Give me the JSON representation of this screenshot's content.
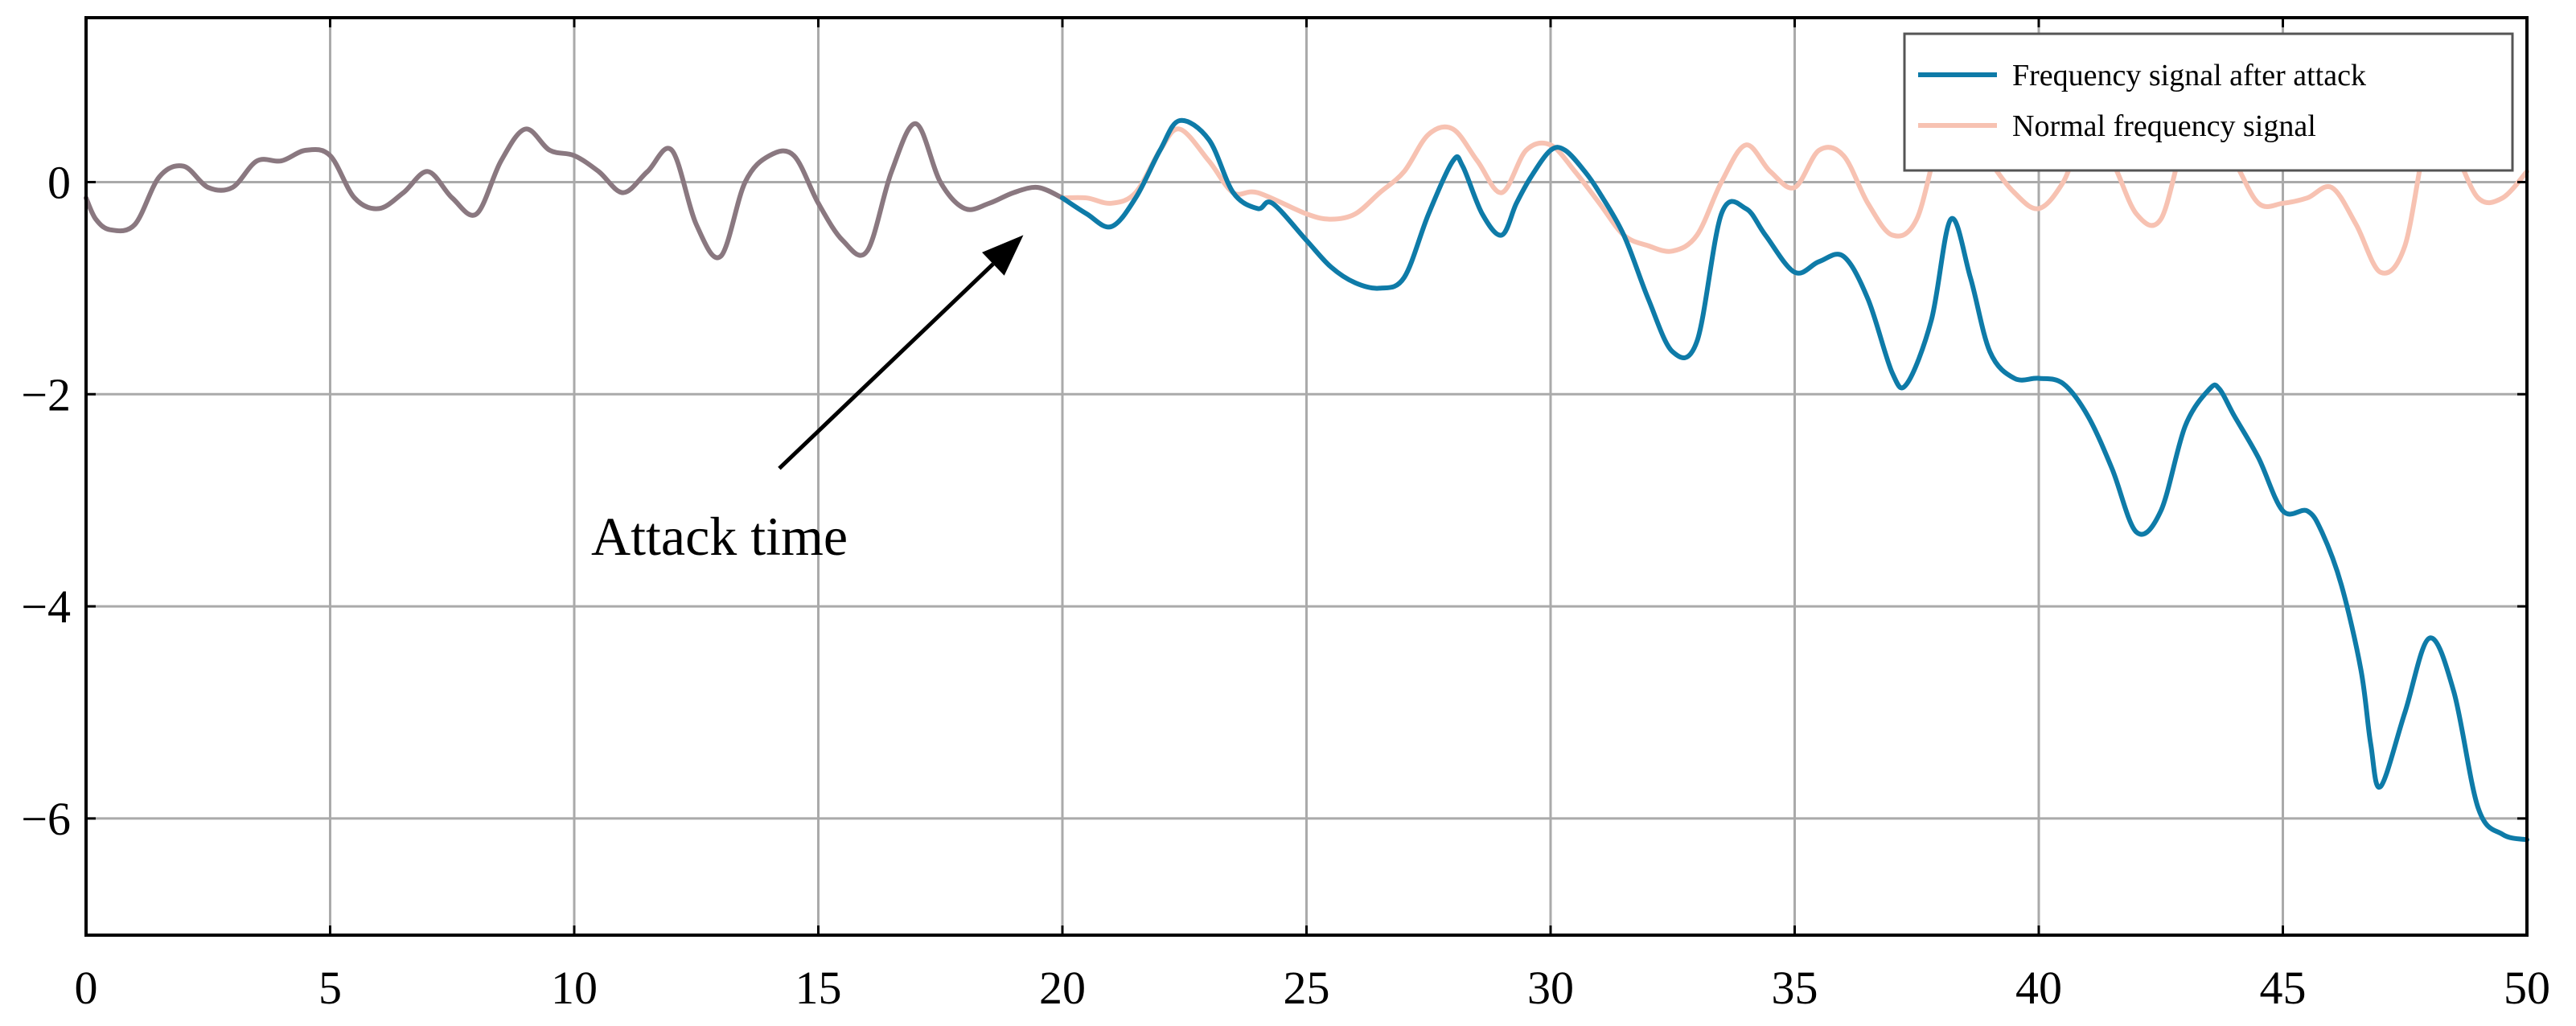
{
  "chart_data": {
    "type": "line",
    "title": "",
    "xlabel": "",
    "ylabel": "",
    "xlim": [
      0,
      50
    ],
    "ylim": [
      -7.1,
      1.55
    ],
    "xticks": [
      0,
      5,
      10,
      15,
      20,
      25,
      30,
      35,
      40,
      45,
      50
    ],
    "xtick_labels": [
      "0",
      "5",
      "10",
      "15",
      "20",
      "25",
      "30",
      "35",
      "40",
      "45",
      "50"
    ],
    "yticks": [
      0,
      -2,
      -4,
      -6
    ],
    "ytick_labels": [
      "0",
      "−2",
      "−4",
      "−6"
    ],
    "grid": true,
    "legend_position": "top-right",
    "colors": {
      "before_attack": "#8a7880",
      "attacked": "#0e7ba8",
      "normal": "#f7c2b2",
      "grid": "#aaaaaa"
    },
    "series": [
      {
        "name": "Frequency signal after attack",
        "x": [
          20,
          20.5,
          21,
          21.5,
          22,
          22.4,
          23,
          23.5,
          24,
          24.3,
          25,
          25.5,
          26,
          26.5,
          27,
          27.5,
          28,
          28.2,
          28.6,
          29,
          29.3,
          29.6,
          30,
          30.3,
          30.7,
          31,
          31.5,
          32,
          32.5,
          33,
          33.5,
          34,
          34.4,
          35,
          35.5,
          36,
          36.5,
          37,
          37.3,
          37.8,
          38.2,
          38.6,
          39,
          39.5,
          40,
          40.5,
          41,
          41.5,
          42,
          42.5,
          43,
          43.5,
          43.7,
          44,
          44.5,
          45,
          45.5,
          45.8,
          46.2,
          46.6,
          46.8,
          47,
          47.5,
          48,
          48.5,
          49,
          49.5,
          50
        ],
        "values": [
          -0.15,
          -0.3,
          -0.42,
          -0.15,
          0.3,
          0.58,
          0.4,
          -0.1,
          -0.25,
          -0.2,
          -0.55,
          -0.8,
          -0.95,
          -1.0,
          -0.9,
          -0.3,
          0.2,
          0.15,
          -0.3,
          -0.5,
          -0.2,
          0.05,
          0.3,
          0.3,
          0.1,
          -0.1,
          -0.5,
          -1.1,
          -1.6,
          -1.5,
          -0.3,
          -0.25,
          -0.5,
          -0.85,
          -0.75,
          -0.7,
          -1.1,
          -1.8,
          -1.9,
          -1.3,
          -0.35,
          -0.9,
          -1.6,
          -1.85,
          -1.85,
          -1.9,
          -2.2,
          -2.7,
          -3.3,
          -3.1,
          -2.3,
          -1.95,
          -1.95,
          -2.2,
          -2.6,
          -3.1,
          -3.1,
          -3.3,
          -3.8,
          -4.6,
          -5.3,
          -5.7,
          -5.0,
          -4.3,
          -4.8,
          -5.9,
          -6.15,
          -6.2
        ]
      },
      {
        "name": "Normal frequency signal",
        "x": [
          20,
          20.5,
          21,
          21.5,
          22,
          22.4,
          23,
          23.5,
          24,
          25,
          25.5,
          26,
          26.5,
          27,
          27.5,
          28,
          28.5,
          29,
          29.5,
          30,
          30.5,
          31,
          31.5,
          32,
          32.5,
          33,
          33.5,
          34,
          34.5,
          35,
          35.5,
          36,
          36.5,
          37,
          37.5,
          38,
          38.5,
          39,
          39.5,
          40,
          40.5,
          41,
          41.5,
          42,
          42.5,
          43,
          43.5,
          44,
          44.5,
          45,
          45.5,
          46,
          46.5,
          47,
          47.5,
          48,
          48.5,
          49,
          49.5,
          50
        ],
        "values": [
          -0.15,
          -0.15,
          -0.2,
          -0.1,
          0.3,
          0.5,
          0.2,
          -0.1,
          -0.1,
          -0.3,
          -0.35,
          -0.3,
          -0.1,
          0.1,
          0.45,
          0.5,
          0.2,
          -0.1,
          0.3,
          0.35,
          0.1,
          -0.2,
          -0.5,
          -0.6,
          -0.65,
          -0.5,
          0.0,
          0.35,
          0.1,
          -0.05,
          0.3,
          0.25,
          -0.2,
          -0.5,
          -0.35,
          0.45,
          0.6,
          0.2,
          -0.1,
          -0.25,
          0.0,
          0.5,
          0.2,
          -0.3,
          -0.35,
          0.4,
          0.5,
          0.2,
          -0.2,
          -0.2,
          -0.15,
          -0.05,
          -0.4,
          -0.85,
          -0.6,
          0.5,
          0.3,
          -0.15,
          -0.15,
          0.1
        ]
      },
      {
        "name": "",
        "x": [
          0,
          0.2,
          0.5,
          1,
          1.5,
          2,
          2.5,
          3,
          3.5,
          4,
          4.5,
          5,
          5.5,
          6,
          6.5,
          7,
          7.5,
          8,
          8.5,
          9,
          9.5,
          10,
          10.5,
          11,
          11.5,
          12,
          12.5,
          13,
          13.5,
          14,
          14.5,
          15,
          15.5,
          16,
          16.5,
          17,
          17.5,
          18,
          18.5,
          19,
          19.5,
          20
        ],
        "values": [
          -0.15,
          -0.35,
          -0.45,
          -0.4,
          0.05,
          0.15,
          -0.05,
          -0.05,
          0.2,
          0.2,
          0.3,
          0.25,
          -0.15,
          -0.25,
          -0.1,
          0.1,
          -0.15,
          -0.3,
          0.2,
          0.5,
          0.3,
          0.25,
          0.1,
          -0.1,
          0.1,
          0.3,
          -0.4,
          -0.7,
          0.0,
          0.25,
          0.25,
          -0.2,
          -0.55,
          -0.65,
          0.1,
          0.55,
          0.0,
          -0.25,
          -0.2,
          -0.1,
          -0.05,
          -0.15
        ]
      }
    ],
    "annotation": {
      "text": "Attack time",
      "tail": [
        14.2,
        -2.7
      ],
      "head": [
        19.2,
        -0.5
      ]
    }
  }
}
